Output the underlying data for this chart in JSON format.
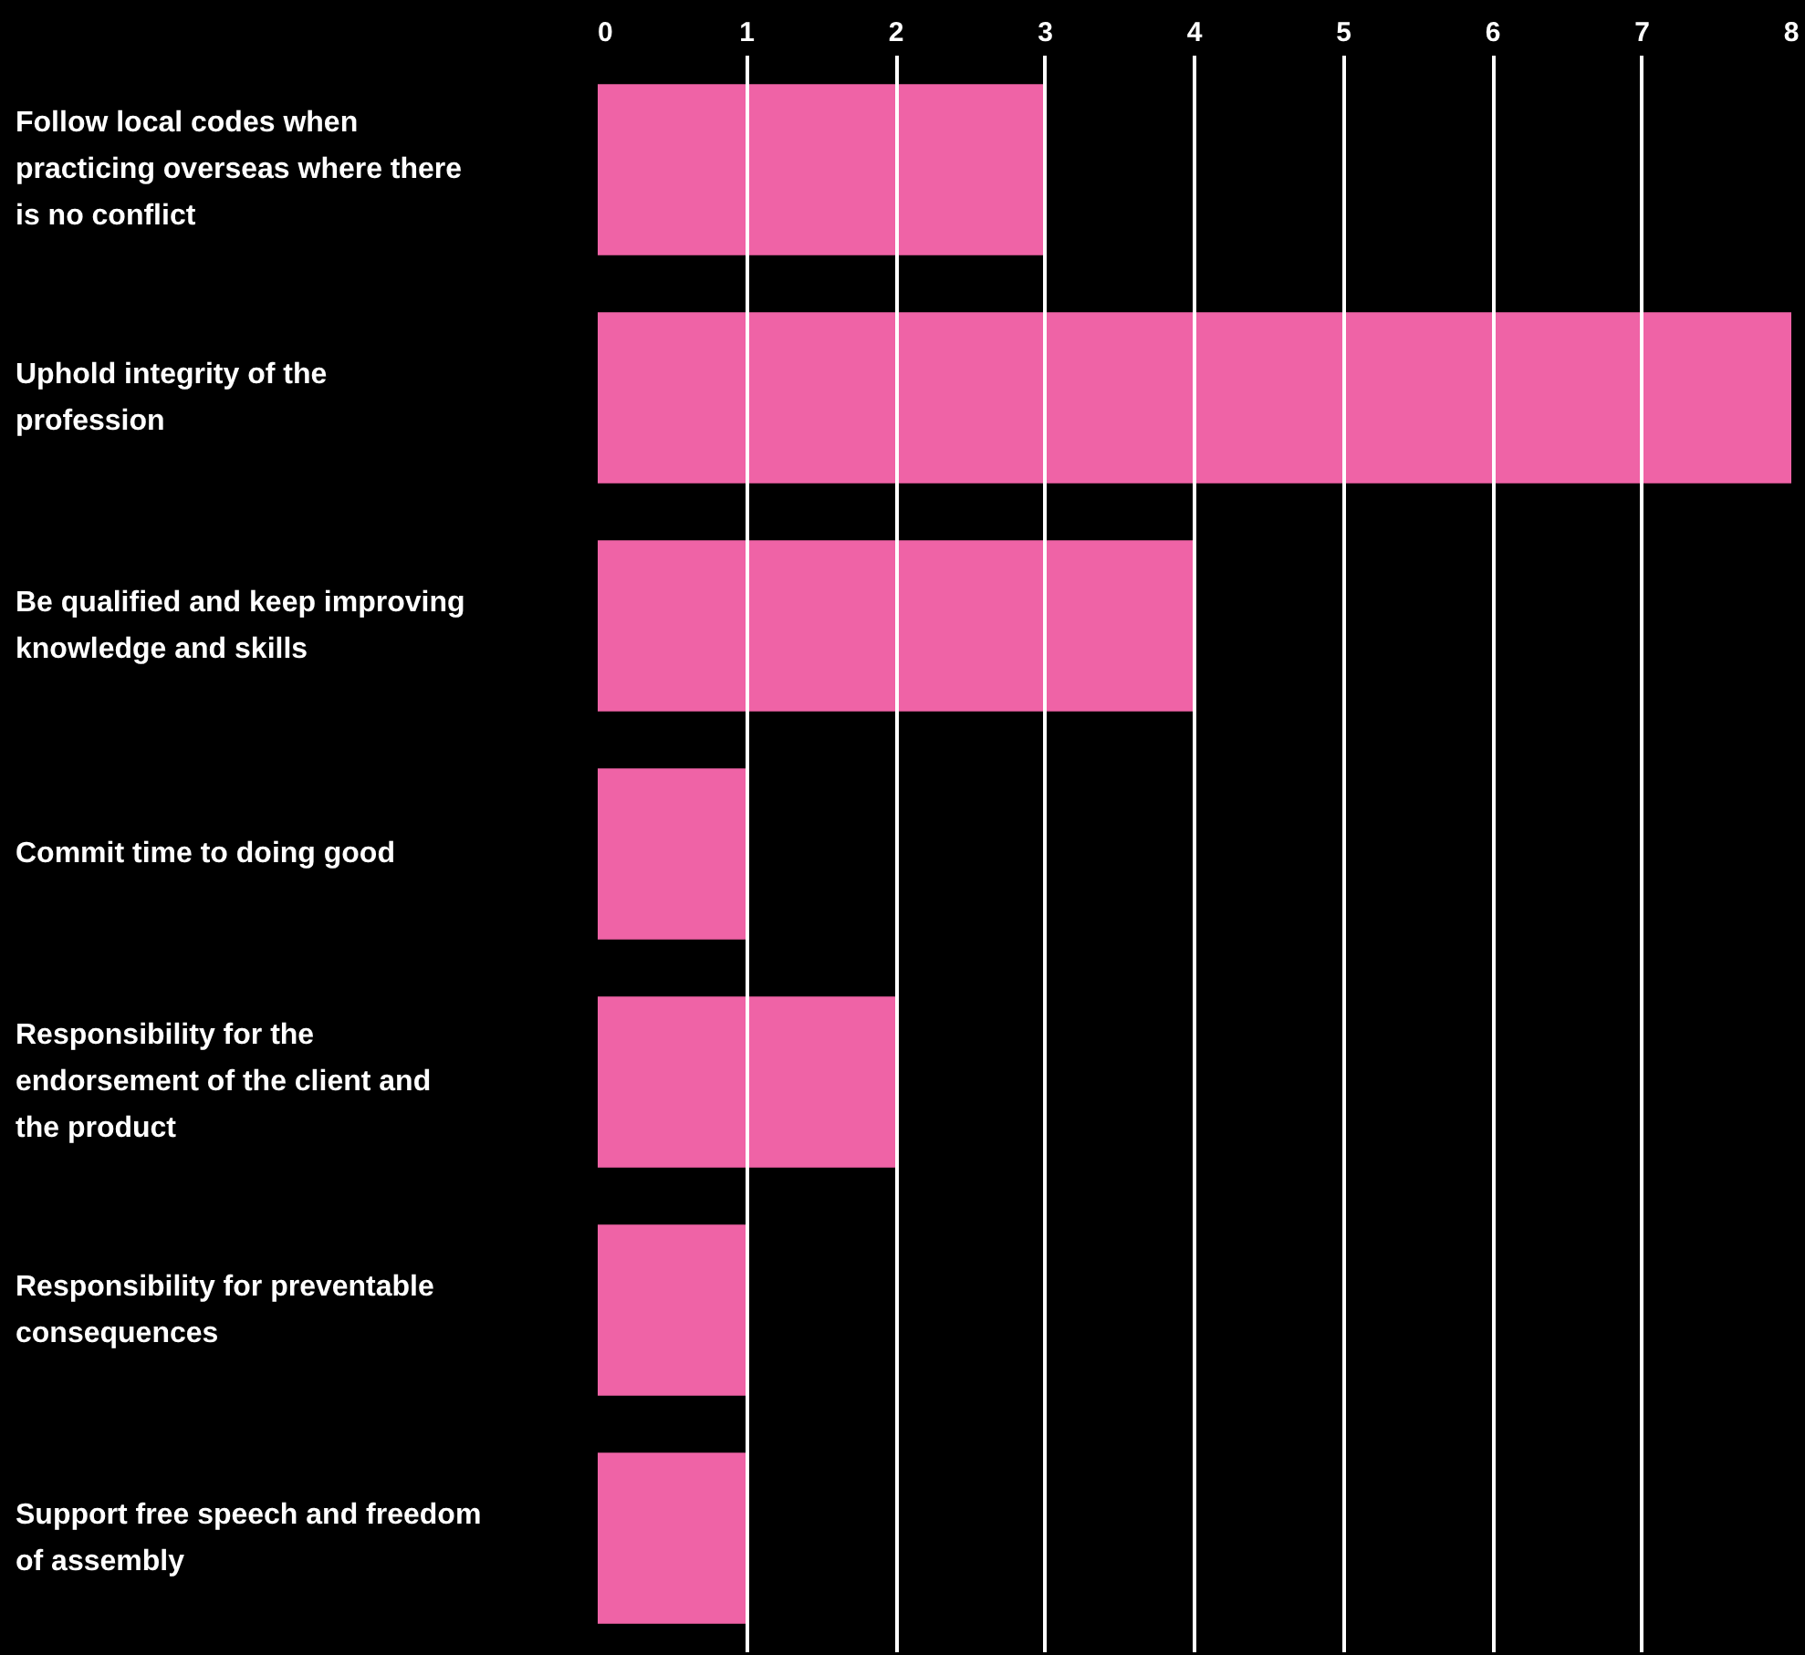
{
  "chart_data": {
    "type": "bar",
    "orientation": "horizontal",
    "categories": [
      "Follow local codes when practicing overseas where there is no conflict",
      "Uphold integrity of the profession",
      "Be qualified and keep improving knowledge and skills",
      "Commit time to doing good",
      "Responsibility for the endorsement of the client and the product",
      "Responsibility for preventable consequences",
      "Support free speech and freedom of assembly"
    ],
    "values": [
      3,
      8,
      4,
      1,
      2,
      1,
      1
    ],
    "color": "#ef63a6",
    "xlim": [
      0,
      8
    ],
    "xticks": [
      0,
      1,
      2,
      3,
      4,
      5,
      6,
      7,
      8
    ],
    "grid": "x"
  }
}
